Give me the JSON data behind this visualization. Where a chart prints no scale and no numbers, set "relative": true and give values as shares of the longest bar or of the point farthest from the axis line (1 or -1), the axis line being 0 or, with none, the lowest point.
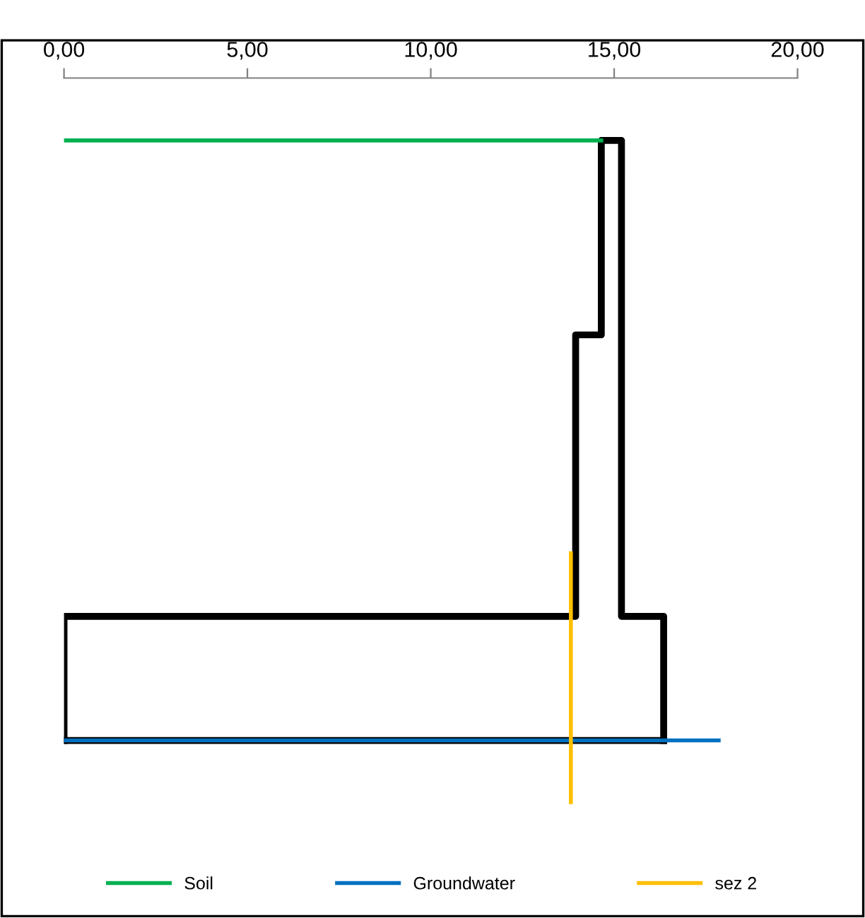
{
  "chart_data": {
    "type": "line",
    "relative": true,
    "xlim": [
      0,
      20
    ],
    "xticks": [
      {
        "value": 0,
        "label": "0,00"
      },
      {
        "value": 5,
        "label": "5,00"
      },
      {
        "value": 10,
        "label": "10,00"
      },
      {
        "value": 15,
        "label": "15,00"
      },
      {
        "value": 20,
        "label": "20,00"
      }
    ],
    "series": [
      {
        "color": "#000000",
        "x": [
          0,
          0,
          13.95,
          13.95,
          14.65,
          14.65,
          15.2,
          15.2,
          16.35,
          16.35
        ],
        "values": [
          0.096,
          0.283,
          0.283,
          0.707,
          0.707,
          1,
          1,
          0.283,
          0.283,
          0.096
        ]
      },
      {
        "color": "#000000",
        "x": [
          0,
          16.35
        ],
        "values": [
          0.096,
          0.096
        ]
      },
      {
        "name": "Soil",
        "color": "#00b050",
        "x": [
          0,
          14.65
        ],
        "values": [
          1,
          1
        ]
      },
      {
        "name": "Groundwater",
        "color": "#0070c0",
        "x": [
          0,
          17.85
        ],
        "values": [
          0.096,
          0.096
        ]
      },
      {
        "name": "sez 2",
        "color": "#ffc000",
        "x": [
          13.82,
          13.82
        ],
        "values": [
          0.378,
          0
        ]
      }
    ],
    "legend": "bottom",
    "grid": false,
    "marker": "none",
    "line_style": "solid"
  }
}
